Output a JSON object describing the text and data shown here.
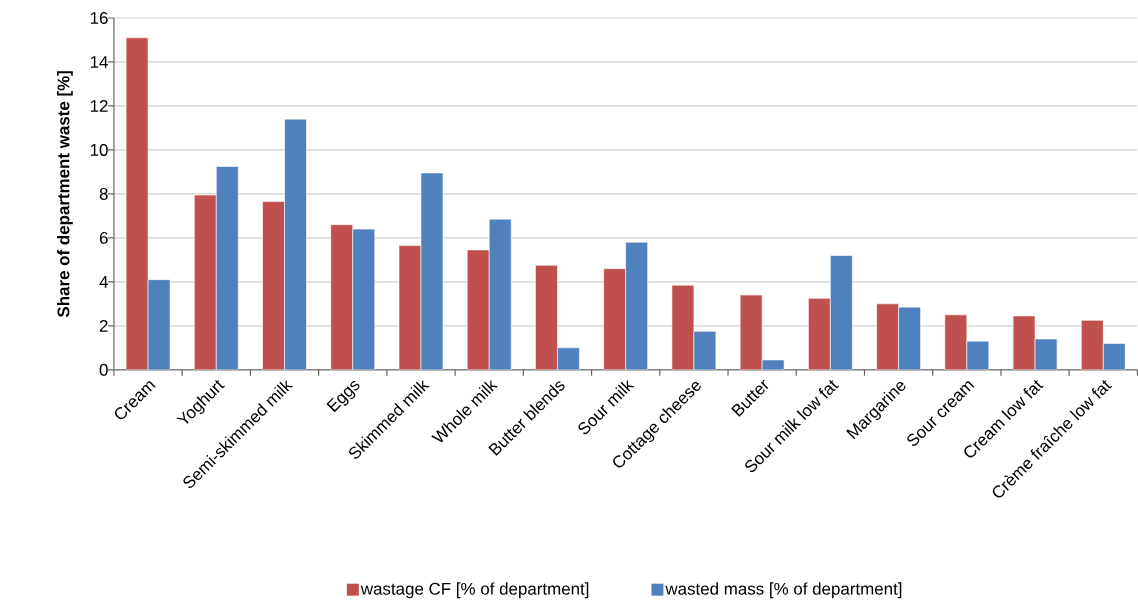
{
  "chart_data": {
    "type": "bar",
    "ylabel": "Share of department waste [%]",
    "categories": [
      "Cream",
      "Yoghurt",
      "Semi-skimmed milk",
      "Eggs",
      "Skimmed milk",
      "Whole milk",
      "Butter blends",
      "Sour milk",
      "Cottage cheese",
      "Butter",
      "Sour milk low fat",
      "Margarine",
      "Sour cream",
      "Cream low fat",
      "Crème fraîche low fat"
    ],
    "series": [
      {
        "name": "wastage CF [% of department]",
        "color": "#c0504d",
        "values": [
          15.1,
          7.95,
          7.65,
          6.6,
          5.65,
          5.45,
          4.75,
          4.6,
          3.85,
          3.4,
          3.25,
          3.0,
          2.5,
          2.45,
          2.25
        ]
      },
      {
        "name": "wasted mass [% of department]",
        "color": "#4f81bd",
        "values": [
          4.1,
          9.25,
          11.4,
          6.4,
          8.95,
          6.85,
          1.0,
          5.8,
          1.75,
          0.45,
          5.2,
          2.85,
          1.3,
          1.4,
          1.2
        ]
      }
    ],
    "ylim": [
      0,
      16
    ],
    "yticks": [
      0,
      2,
      4,
      6,
      8,
      10,
      12,
      14,
      16
    ],
    "grid": "y",
    "legend": "bottom"
  }
}
